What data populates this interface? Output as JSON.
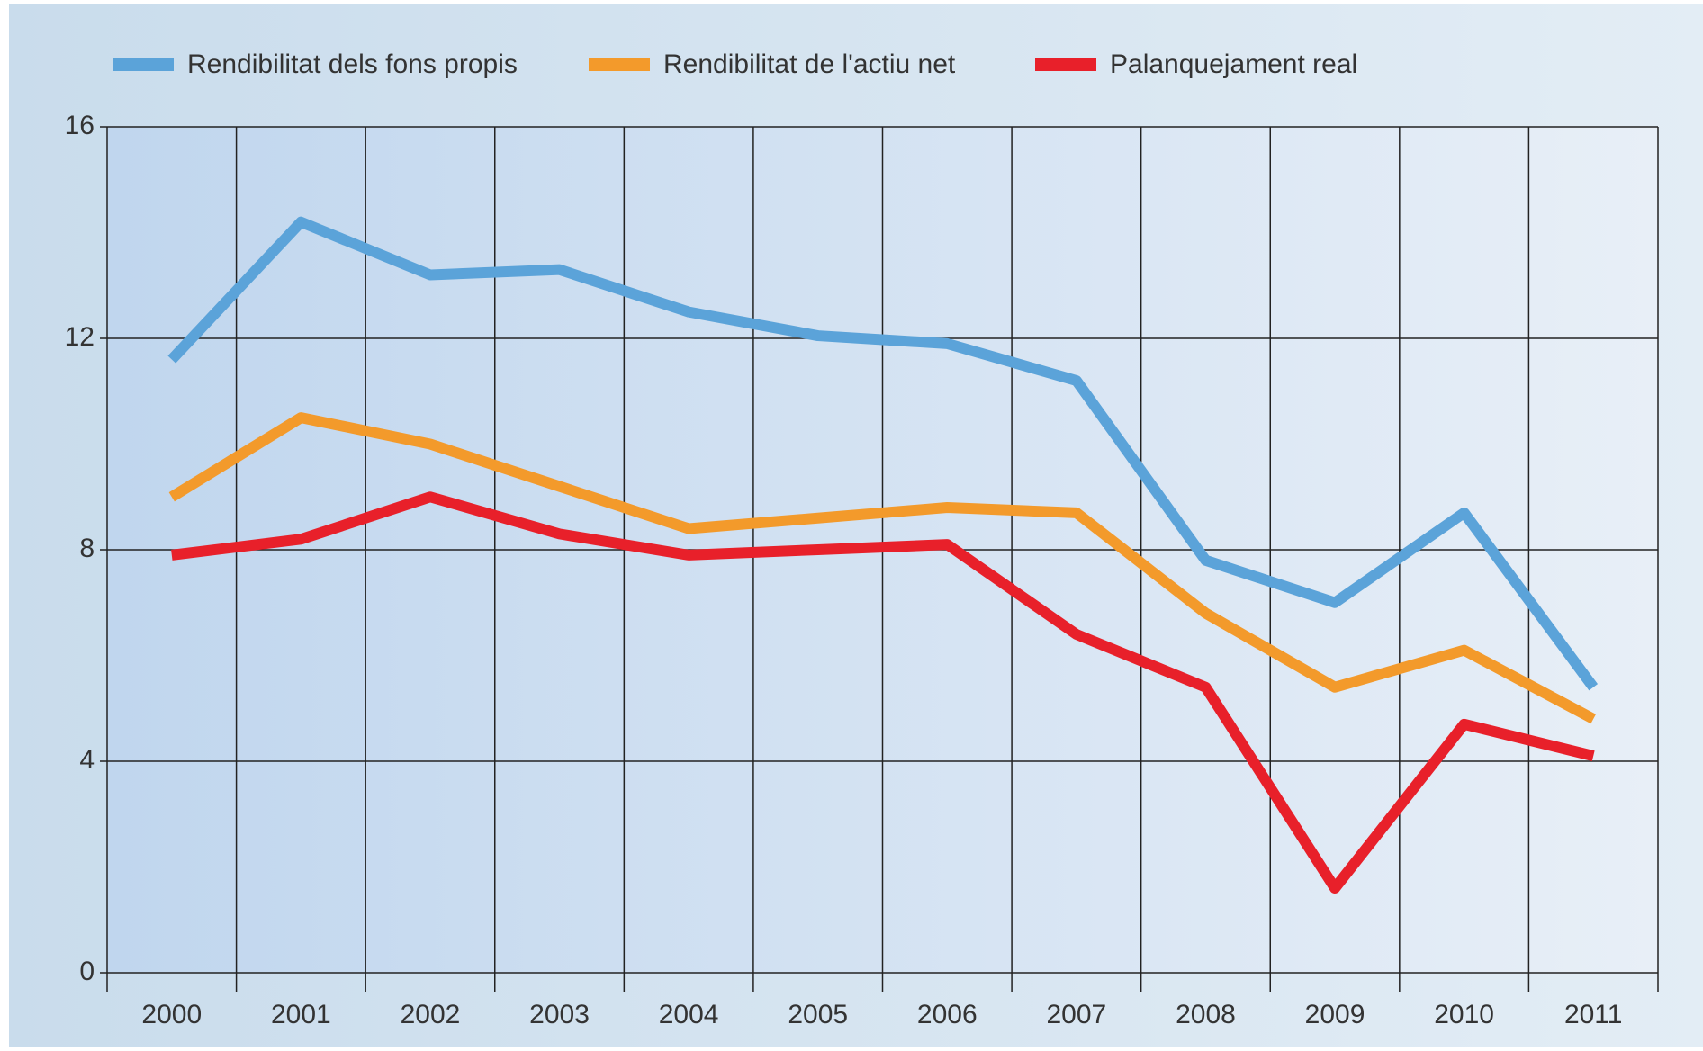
{
  "chart_data": {
    "type": "line",
    "categories": [
      "2000",
      "2001",
      "2002",
      "2003",
      "2004",
      "2005",
      "2006",
      "2007",
      "2008",
      "2009",
      "2010",
      "2011"
    ],
    "series": [
      {
        "name": "Rendibilitat dels fons propis",
        "color": "#5ba3d9",
        "values": [
          11.6,
          14.2,
          13.2,
          13.3,
          12.5,
          12.05,
          11.9,
          11.2,
          7.8,
          7.0,
          8.7,
          5.4
        ]
      },
      {
        "name": "Rendibilitat de l'actiu net",
        "color": "#f39a2b",
        "values": [
          9.0,
          10.5,
          10.0,
          9.2,
          8.4,
          8.6,
          8.8,
          8.7,
          6.8,
          5.4,
          6.1,
          4.8
        ]
      },
      {
        "name": "Palanquejament real",
        "color": "#e8202a",
        "values": [
          7.9,
          8.2,
          9.0,
          8.3,
          7.9,
          8.0,
          8.1,
          6.4,
          5.4,
          1.6,
          4.7,
          4.1
        ]
      }
    ],
    "ylim": [
      0,
      16
    ],
    "yticks": [
      0,
      4,
      8,
      12,
      16
    ],
    "grid": true,
    "legend": "top"
  }
}
